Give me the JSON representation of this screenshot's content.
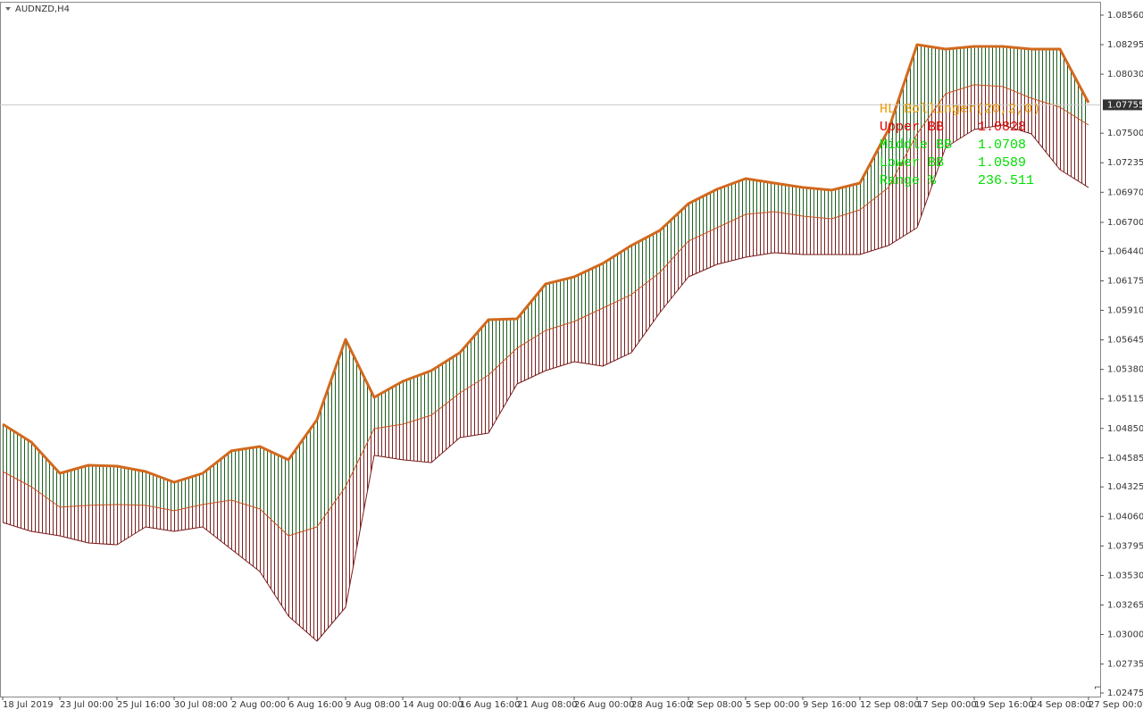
{
  "chart_data": {
    "type": "line",
    "title": "AUDNZD,H4",
    "x": [
      0,
      8,
      16,
      24,
      32,
      40,
      48,
      56,
      64,
      72,
      80,
      88,
      96,
      104,
      112,
      120,
      128,
      136,
      144,
      152,
      160,
      168,
      176,
      184,
      192,
      200,
      208,
      216,
      224,
      232,
      240,
      248,
      256,
      264,
      272,
      280,
      288,
      296,
      304
    ],
    "xlim": [
      -0.75,
      307.25
    ],
    "xticks": [
      {
        "value": 0,
        "label": "18 Jul 2019"
      },
      {
        "value": 16,
        "label": "23 Jul 00:00"
      },
      {
        "value": 32,
        "label": "25 Jul 16:00"
      },
      {
        "value": 48,
        "label": "30 Jul 08:00"
      },
      {
        "value": 64,
        "label": "2 Aug 00:00"
      },
      {
        "value": 80,
        "label": "6 Aug 16:00"
      },
      {
        "value": 96,
        "label": "9 Aug 08:00"
      },
      {
        "value": 112,
        "label": "14 Aug 00:00"
      },
      {
        "value": 128,
        "label": "16 Aug 16:00"
      },
      {
        "value": 144,
        "label": "21 Aug 08:00"
      },
      {
        "value": 160,
        "label": "26 Aug 00:00"
      },
      {
        "value": 176,
        "label": "28 Aug 16:00"
      },
      {
        "value": 192,
        "label": "2 Sep 08:00"
      },
      {
        "value": 208,
        "label": "5 Sep 00:00"
      },
      {
        "value": 224,
        "label": "9 Sep 16:00"
      },
      {
        "value": 240,
        "label": "12 Sep 08:00"
      },
      {
        "value": 256,
        "label": "17 Sep 00:00"
      },
      {
        "value": 272,
        "label": "19 Sep 16:00"
      },
      {
        "value": 288,
        "label": "24 Sep 08:00"
      },
      {
        "value": 304,
        "label": "27 Sep 00:00"
      }
    ],
    "ylim": [
      1.02443,
      1.0868
    ],
    "yticks": [
      {
        "value": 1.0856,
        "label": "1.08560"
      },
      {
        "value": 1.08295,
        "label": "1.08295"
      },
      {
        "value": 1.0803,
        "label": "1.08030"
      },
      {
        "value": 1.075,
        "label": "1.07500"
      },
      {
        "value": 1.07235,
        "label": "1.07235"
      },
      {
        "value": 1.0697,
        "label": "1.06970"
      },
      {
        "value": 1.067,
        "label": "1.06700"
      },
      {
        "value": 1.0644,
        "label": "1.06440"
      },
      {
        "value": 1.06175,
        "label": "1.06175"
      },
      {
        "value": 1.0591,
        "label": "1.05910"
      },
      {
        "value": 1.05645,
        "label": "1.05645"
      },
      {
        "value": 1.0538,
        "label": "1.05380"
      },
      {
        "value": 1.05115,
        "label": "1.05115"
      },
      {
        "value": 1.0485,
        "label": "1.04850"
      },
      {
        "value": 1.04585,
        "label": "1.04585"
      },
      {
        "value": 1.04325,
        "label": "1.04325"
      },
      {
        "value": 1.0406,
        "label": "1.04060"
      },
      {
        "value": 1.03795,
        "label": "1.03795"
      },
      {
        "value": 1.0353,
        "label": "1.03530"
      },
      {
        "value": 1.03265,
        "label": "1.03265"
      },
      {
        "value": 1.03,
        "label": "1.03000"
      },
      {
        "value": 1.02735,
        "label": "1.02735"
      },
      {
        "value": 1.02475,
        "label": "1.02475"
      }
    ],
    "current_price": {
      "value": 1.07755,
      "label": "1.07755"
    },
    "series": [
      {
        "color": "#d2691e",
        "values": [
          1.04888,
          1.04728,
          1.04447,
          1.04519,
          1.04511,
          1.04463,
          1.04367,
          1.04447,
          1.04648,
          1.04688,
          1.04568,
          1.04928,
          1.0565,
          1.05129,
          1.05273,
          1.05369,
          1.0553,
          1.05826,
          1.05834,
          1.06147,
          1.06211,
          1.06331,
          1.06492,
          1.06628,
          1.06868,
          1.06997,
          1.07093,
          1.07053,
          1.07013,
          1.06989,
          1.07053,
          1.07534,
          1.08295,
          1.08255,
          1.08279,
          1.08279,
          1.08255,
          1.08255,
          1.07774
        ]
      },
      {
        "color": "#c8501e",
        "values": [
          1.04463,
          1.04327,
          1.04143,
          1.04159,
          1.04167,
          1.04159,
          1.04111,
          1.04167,
          1.04207,
          1.04127,
          1.03886,
          1.03966,
          1.04327,
          1.04848,
          1.04888,
          1.04968,
          1.05169,
          1.05329,
          1.0557,
          1.0573,
          1.0581,
          1.0593,
          1.06051,
          1.06251,
          1.06532,
          1.06652,
          1.06772,
          1.06796,
          1.06756,
          1.06732,
          1.06812,
          1.07013,
          1.07494,
          1.07855,
          1.07935,
          1.07919,
          1.07814,
          1.07734,
          1.07574
        ]
      },
      {
        "color": "#7a1a1a",
        "values": [
          1.04006,
          1.03926,
          1.03886,
          1.03822,
          1.03806,
          1.03966,
          1.03926,
          1.03966,
          1.03766,
          1.03565,
          1.03165,
          1.0294,
          1.03245,
          1.04608,
          1.04568,
          1.04543,
          1.04768,
          1.04808,
          1.05249,
          1.05369,
          1.05449,
          1.05409,
          1.0553,
          1.0589,
          1.06211,
          1.06323,
          1.06387,
          1.06427,
          1.06411,
          1.06411,
          1.06411,
          1.06492,
          1.06652,
          1.07373,
          1.07534,
          1.07574,
          1.07494,
          1.07173,
          1.07013
        ]
      }
    ],
    "upper_fill_color": "#1f5f1f",
    "lower_fill_color": "#7a2020",
    "indicator_panel": {
      "title": "HL Bollinger(20,2,0)",
      "title_color": "#e89a00",
      "rows": [
        {
          "label": "Upper BB",
          "value": 1.0828,
          "color": "#e00000"
        },
        {
          "label": "Middle BB",
          "value": 1.0708,
          "color": "#00e000"
        },
        {
          "label": "Lower BB",
          "value": 1.0589,
          "color": "#00e000"
        },
        {
          "label": "Range %",
          "value": 236.511,
          "color": "#00e000"
        }
      ]
    }
  }
}
